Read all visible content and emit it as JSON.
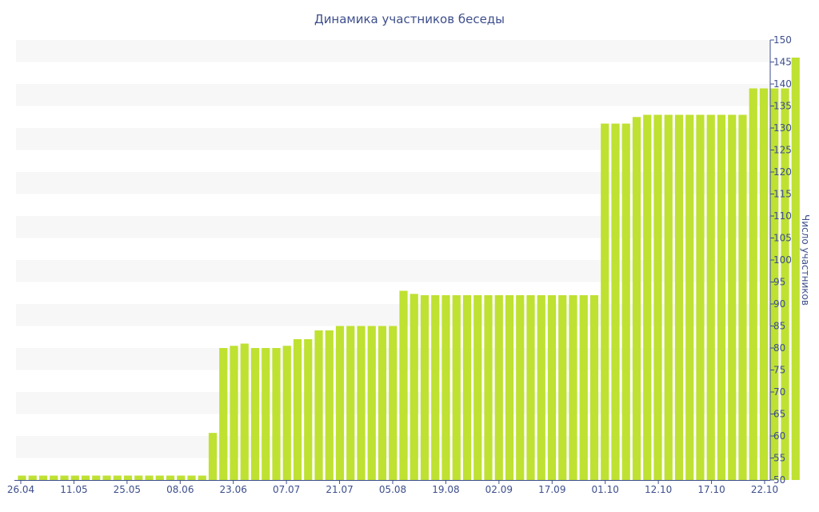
{
  "chart_data": {
    "type": "bar",
    "title": "Динамика участников беседы",
    "xlabel": "",
    "ylabel": "Число участников",
    "ylim": [
      50,
      150
    ],
    "ytick_step": 5,
    "y_axis_side": "right",
    "grid": "alternating-bands",
    "legend": "none",
    "x_tick_labels": [
      "26.04",
      "11.05",
      "25.05",
      "08.06",
      "23.06",
      "07.07",
      "21.07",
      "05.08",
      "19.08",
      "02.09",
      "17.09",
      "01.10",
      "12.10",
      "17.10",
      "22.10"
    ],
    "values": [
      51,
      51,
      51,
      51,
      51,
      51,
      51,
      51,
      51,
      51,
      51,
      51,
      51,
      51,
      51,
      51,
      51,
      51,
      60.7,
      80,
      80.5,
      81,
      80,
      80,
      80,
      80.5,
      82,
      82,
      84,
      84,
      85,
      85,
      85,
      85,
      85,
      85,
      93,
      92.3,
      92,
      92,
      92,
      92,
      92,
      92,
      92,
      92,
      92,
      92,
      92,
      92,
      92,
      92,
      92,
      92,
      92,
      131,
      131,
      131,
      132.5,
      133,
      133,
      133,
      133,
      133,
      133,
      133,
      133,
      133,
      133,
      139,
      139,
      139,
      139,
      146
    ],
    "colors": {
      "bar": "#bfe132",
      "band": "#f7f7f7",
      "text": "#3d4e8c",
      "axis": "#3d4e8c"
    }
  }
}
